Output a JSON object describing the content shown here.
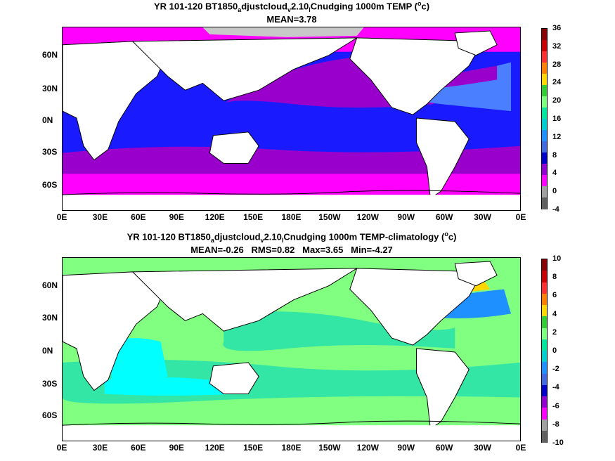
{
  "panel1": {
    "title_pre": "YR 101-120 BT1850",
    "title_sub1": "a",
    "title_mid1": "djustcloud",
    "title_sub2": "v",
    "title_mid2": "2.10",
    "title_sub3": "l",
    "title_post": "Cnudging 1000m TEMP (",
    "title_sup": "o",
    "title_end": "c)",
    "stats": "MEAN=3.78",
    "colorbar_labels": [
      "36",
      "32",
      "28",
      "24",
      "20",
      "16",
      "12",
      "8",
      "4",
      "0",
      "-4"
    ],
    "colorbar_colors": [
      "#8b0000",
      "#cc0000",
      "#ff3030",
      "#ff7f00",
      "#ffd700",
      "#32cd32",
      "#7fff7f",
      "#00e5a0",
      "#00ced1",
      "#1e90ff",
      "#4169e1",
      "#0000cd",
      "#9400d3",
      "#ff00ff",
      "#a0a0a0",
      "#606060"
    ]
  },
  "panel2": {
    "title_pre": "YR 101-120 BT1850",
    "title_sub1": "a",
    "title_mid1": "djustcloud",
    "title_sub2": "v",
    "title_mid2": "2.10",
    "title_sub3": "l",
    "title_post": "Cnudging 1000m TEMP-climatology (",
    "title_sup": "o",
    "title_end": "c)",
    "stats": "MEAN=-0.26   RMS=0.82   Max=3.65   Min=-4.27",
    "colorbar_labels": [
      "10",
      "8",
      "6",
      "4",
      "2",
      "0",
      "-2",
      "-4",
      "-6",
      "-8",
      "-10"
    ],
    "colorbar_colors": [
      "#8b0000",
      "#cc0000",
      "#ff3030",
      "#ff7f00",
      "#ffd700",
      "#32cd32",
      "#7fff7f",
      "#00e5a0",
      "#00ced1",
      "#1e90ff",
      "#4169e1",
      "#0000cd",
      "#9400d3",
      "#ff00ff",
      "#a0a0a0",
      "#606060"
    ]
  },
  "axes": {
    "lat_labels": [
      "60N",
      "30N",
      "0N",
      "30S",
      "60S"
    ],
    "lon_labels": [
      "0E",
      "30E",
      "60E",
      "90E",
      "120E",
      "150E",
      "180E",
      "150W",
      "120W",
      "90W",
      "60W",
      "30W",
      "0E"
    ]
  },
  "colors": {
    "magenta": "#ff00ff",
    "purple": "#9900cc",
    "blue": "#1a1aff",
    "light_blue": "#4a7fff",
    "cyan": "#00ffff",
    "light_green": "#80ff80",
    "mint": "#33e6a6",
    "gray_ice": "#c8c8c8",
    "land": "#ffffff"
  }
}
